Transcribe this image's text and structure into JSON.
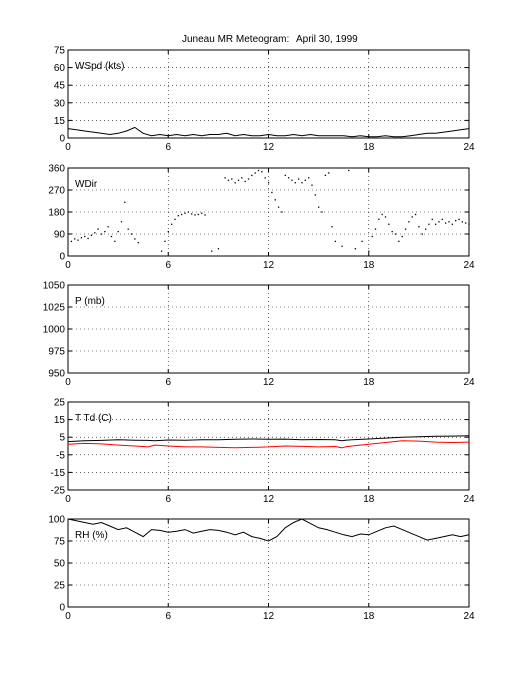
{
  "title": {
    "station": "Juneau MR Meteogram:",
    "date": "April 30, 1999"
  },
  "chart_data": [
    {
      "type": "line",
      "label": "WSpd (kts)",
      "xlim": [
        0,
        24
      ],
      "ylim": [
        0,
        75
      ],
      "xticks": [
        0,
        6,
        12,
        18,
        24
      ],
      "yticks": [
        0,
        15,
        30,
        45,
        60,
        75
      ],
      "grid": true,
      "series": [
        {
          "color": "#000000",
          "style": "line",
          "x": [
            0,
            0.5,
            1,
            1.5,
            2,
            2.5,
            3,
            3.5,
            4,
            4.5,
            5,
            5.5,
            6,
            6.5,
            7,
            7.5,
            8,
            8.5,
            9,
            9.5,
            10,
            10.5,
            11,
            11.5,
            12,
            12.5,
            13,
            13.5,
            14,
            14.5,
            15,
            15.5,
            16,
            16.5,
            17,
            17.5,
            18,
            18.5,
            19,
            19.5,
            20,
            20.5,
            21,
            21.5,
            22,
            22.5,
            23,
            23.5,
            24
          ],
          "y": [
            8,
            7,
            6,
            5,
            4,
            3,
            4,
            6,
            9,
            4,
            2,
            3,
            2,
            3,
            2,
            3,
            2,
            3,
            3,
            4,
            2,
            3,
            2,
            2,
            3,
            2,
            2,
            3,
            2,
            3,
            2,
            2,
            2,
            2,
            1,
            2,
            1,
            1,
            2,
            1,
            1,
            2,
            3,
            4,
            4,
            5,
            6,
            7,
            8
          ]
        }
      ]
    },
    {
      "type": "scatter",
      "label": "WDir",
      "xlim": [
        0,
        24
      ],
      "ylim": [
        0,
        360
      ],
      "xticks": [
        0,
        6,
        12,
        18,
        24
      ],
      "yticks": [
        0,
        90,
        180,
        270,
        360
      ],
      "grid": true,
      "series": [
        {
          "color": "#000000",
          "style": "dots",
          "x": [
            0.2,
            0.4,
            0.6,
            0.8,
            1.0,
            1.2,
            1.4,
            1.6,
            1.8,
            2.0,
            2.2,
            2.4,
            2.6,
            2.8,
            3.0,
            3.2,
            3.4,
            3.6,
            3.8,
            4.0,
            4.2,
            5.6,
            5.8,
            6.0,
            6.2,
            6.4,
            6.6,
            6.8,
            7.0,
            7.2,
            7.4,
            7.6,
            7.8,
            8.0,
            8.2,
            8.6,
            9.0,
            9.4,
            9.6,
            9.8,
            10.0,
            10.2,
            10.4,
            10.6,
            10.8,
            11.0,
            11.2,
            11.4,
            11.6,
            11.8,
            12.0,
            12.2,
            12.4,
            12.6,
            12.8,
            13.0,
            13.2,
            13.4,
            13.6,
            13.8,
            14.0,
            14.2,
            14.4,
            14.6,
            14.8,
            15.0,
            15.2,
            15.4,
            15.6,
            15.8,
            16.0,
            16.4,
            16.8,
            17.2,
            17.6,
            18.0,
            18.2,
            18.4,
            18.6,
            18.8,
            19.0,
            19.2,
            19.4,
            19.6,
            19.8,
            20.0,
            20.2,
            20.4,
            20.6,
            20.8,
            21.0,
            21.2,
            21.4,
            21.6,
            21.8,
            22.0,
            22.2,
            22.4,
            22.6,
            22.8,
            23.0,
            23.2,
            23.4,
            23.6,
            23.8,
            24.0
          ],
          "y": [
            60,
            70,
            65,
            75,
            80,
            72,
            85,
            95,
            110,
            90,
            100,
            120,
            80,
            60,
            100,
            140,
            220,
            110,
            90,
            70,
            55,
            20,
            60,
            100,
            130,
            150,
            165,
            170,
            175,
            180,
            172,
            168,
            170,
            175,
            168,
            20,
            30,
            320,
            310,
            315,
            300,
            310,
            320,
            305,
            315,
            330,
            340,
            350,
            345,
            320,
            300,
            260,
            230,
            200,
            180,
            330,
            320,
            310,
            300,
            315,
            300,
            310,
            320,
            290,
            250,
            200,
            180,
            330,
            340,
            120,
            60,
            40,
            350,
            30,
            60,
            20,
            80,
            110,
            150,
            170,
            160,
            130,
            100,
            90,
            60,
            80,
            110,
            140,
            160,
            170,
            120,
            90,
            110,
            130,
            150,
            130,
            140,
            150,
            135,
            140,
            130,
            145,
            150,
            140,
            135,
            130
          ]
        }
      ]
    },
    {
      "type": "line",
      "label": "P (mb)",
      "xlim": [
        0,
        24
      ],
      "ylim": [
        950,
        1050
      ],
      "xticks": [
        0,
        6,
        12,
        18,
        24
      ],
      "yticks": [
        950,
        975,
        1000,
        1025,
        1050
      ],
      "grid": true,
      "series": []
    },
    {
      "type": "line",
      "label": "T Td (C)",
      "xlim": [
        0,
        24
      ],
      "ylim": [
        -25,
        25
      ],
      "xticks": [
        0,
        6,
        12,
        18,
        24
      ],
      "yticks": [
        -25,
        -15,
        -5,
        5,
        15,
        25
      ],
      "grid": true,
      "series": [
        {
          "color": "#000000",
          "style": "line",
          "x": [
            0,
            1,
            2,
            3,
            4,
            4.8,
            5.2,
            6,
            7,
            8,
            9,
            10,
            11,
            12,
            13,
            14,
            15,
            16,
            16.4,
            16.6,
            17,
            18,
            19,
            20,
            21,
            22,
            23,
            24
          ],
          "y": [
            2.5,
            3.0,
            3.2,
            3.5,
            3.3,
            3.2,
            3.0,
            3.4,
            3.3,
            3.5,
            3.6,
            3.8,
            4.0,
            3.8,
            3.9,
            3.6,
            3.7,
            3.5,
            3.0,
            3.3,
            3.5,
            4.0,
            4.5,
            5.0,
            5.2,
            5.5,
            5.6,
            5.8
          ]
        },
        {
          "color": "#ff0000",
          "style": "line",
          "x": [
            0,
            1,
            2,
            3,
            4,
            4.8,
            5.2,
            6,
            7,
            8,
            9,
            10,
            11,
            12,
            13,
            14,
            15,
            16,
            16.4,
            16.6,
            17,
            18,
            19,
            20,
            21,
            22,
            23,
            24
          ],
          "y": [
            1.0,
            1.5,
            1.2,
            0.5,
            0.0,
            -0.5,
            0.5,
            0.0,
            -0.5,
            -0.5,
            -0.8,
            -1.0,
            -0.8,
            -0.5,
            0.0,
            -0.2,
            -0.5,
            -0.3,
            -1.0,
            -0.5,
            0.0,
            1.0,
            2.0,
            3.0,
            2.8,
            2.2,
            2.0,
            2.2
          ]
        }
      ]
    },
    {
      "type": "line",
      "label": "RH (%)",
      "xlim": [
        0,
        24
      ],
      "ylim": [
        0,
        100
      ],
      "xticks": [
        0,
        6,
        12,
        18,
        24
      ],
      "yticks": [
        0,
        25,
        50,
        75,
        100
      ],
      "grid": true,
      "series": [
        {
          "color": "#000000",
          "style": "line",
          "x": [
            0,
            0.5,
            1,
            1.5,
            2,
            2.5,
            3,
            3.5,
            4,
            4.5,
            5,
            5.5,
            6,
            6.5,
            7,
            7.5,
            8,
            8.5,
            9,
            9.5,
            10,
            10.5,
            11,
            11.5,
            12,
            12.5,
            13,
            13.5,
            14,
            14.5,
            15,
            15.5,
            16,
            16.5,
            17,
            17.5,
            18,
            18.5,
            19,
            19.5,
            20,
            20.5,
            21,
            21.5,
            22,
            22.5,
            23,
            23.5,
            24
          ],
          "y": [
            100,
            98,
            96,
            94,
            96,
            92,
            88,
            90,
            85,
            80,
            88,
            87,
            85,
            86,
            88,
            84,
            86,
            88,
            87,
            85,
            82,
            85,
            80,
            78,
            75,
            80,
            90,
            96,
            100,
            95,
            90,
            88,
            85,
            82,
            80,
            83,
            82,
            86,
            90,
            92,
            88,
            84,
            80,
            76,
            78,
            80,
            82,
            80,
            82
          ]
        }
      ]
    }
  ]
}
